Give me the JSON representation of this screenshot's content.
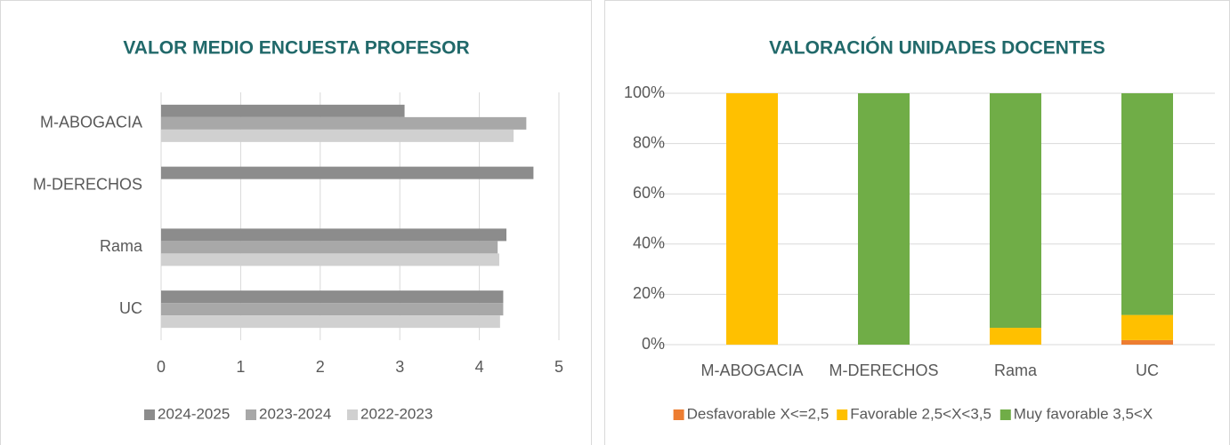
{
  "chart_data": [
    {
      "type": "hbar",
      "title": "VALOR MEDIO ENCUESTA PROFESOR",
      "categories": [
        "M-ABOGACIA",
        "M-DERECHOS",
        "Rama",
        "UC"
      ],
      "series": [
        {
          "name": "2024-2025",
          "color": "#8c8c8c",
          "values": [
            3.06,
            4.68,
            4.34,
            4.3
          ]
        },
        {
          "name": "2023-2024",
          "color": "#a8a8a8",
          "values": [
            4.59,
            null,
            4.23,
            4.3
          ]
        },
        {
          "name": "2022-2023",
          "color": "#d0d0d0",
          "values": [
            4.43,
            null,
            4.25,
            4.26
          ]
        }
      ],
      "xlim": [
        0,
        5
      ],
      "xticks": [
        0,
        1,
        2,
        3,
        4,
        5
      ],
      "grid": true,
      "legend": "bottom"
    },
    {
      "type": "stacked_bar",
      "title": "VALORACIÓN UNIDADES DOCENTES",
      "categories": [
        "M-ABOGACIA",
        "M-DERECHOS",
        "Rama",
        "UC"
      ],
      "series": [
        {
          "name": "Desfavorable X<=2,5",
          "color": "#ed7d31",
          "values": [
            0,
            0,
            0,
            1.8
          ]
        },
        {
          "name": "Favorable 2,5<X<3,5",
          "color": "#ffc000",
          "values": [
            100,
            0,
            6.7,
            10
          ]
        },
        {
          "name": "Muy favorable 3,5<X",
          "color": "#70ad47",
          "values": [
            0,
            100,
            93.3,
            88.2
          ]
        }
      ],
      "ylim": [
        0,
        100
      ],
      "yticks": [
        {
          "value": 0,
          "label": "0%"
        },
        {
          "value": 20,
          "label": "20%"
        },
        {
          "value": 40,
          "label": "40%"
        },
        {
          "value": 60,
          "label": "60%"
        },
        {
          "value": 80,
          "label": "80%"
        },
        {
          "value": 100,
          "label": "100%"
        }
      ],
      "grid": true,
      "legend": "bottom"
    }
  ]
}
